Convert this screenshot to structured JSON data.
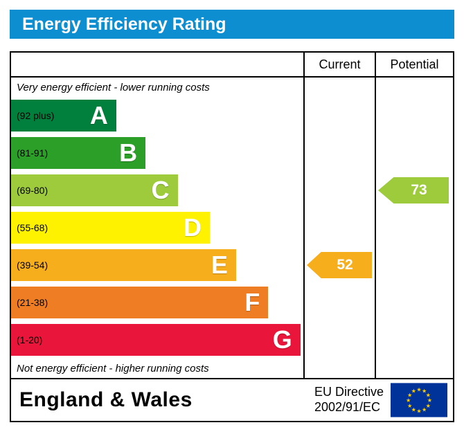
{
  "title": "Energy Efficiency Rating",
  "colors": {
    "title_bg": "#0c8ed0",
    "title_text": "#ffffff",
    "eu_flag_bg": "#003399",
    "eu_flag_star": "#ffcc00"
  },
  "columns": {
    "current": "Current",
    "potential": "Potential"
  },
  "notes": {
    "top": "Very energy efficient - lower running costs",
    "bottom": "Not energy efficient - higher running costs"
  },
  "footer": {
    "region": "England & Wales",
    "directive_line1": "EU Directive",
    "directive_line2": "2002/91/EC"
  },
  "chart_data": {
    "type": "bar",
    "title": "Energy Efficiency Rating",
    "bands": [
      {
        "label": "A",
        "range": "(92 plus)",
        "color": "#007f3d",
        "width_pct": 36
      },
      {
        "label": "B",
        "range": "(81-91)",
        "color": "#2c9f29",
        "width_pct": 46
      },
      {
        "label": "C",
        "range": "(69-80)",
        "color": "#9dcb3c",
        "width_pct": 57
      },
      {
        "label": "D",
        "range": "(55-68)",
        "color": "#fff200",
        "width_pct": 68
      },
      {
        "label": "E",
        "range": "(39-54)",
        "color": "#f7ae1d",
        "width_pct": 77
      },
      {
        "label": "F",
        "range": "(21-38)",
        "color": "#ef7d23",
        "width_pct": 88
      },
      {
        "label": "G",
        "range": "(1-20)",
        "color": "#e9153b",
        "width_pct": 99
      }
    ],
    "current": {
      "value": 52,
      "band": "E",
      "color": "#f7ae1d"
    },
    "potential": {
      "value": 73,
      "band": "C",
      "color": "#9dcb3c"
    }
  }
}
